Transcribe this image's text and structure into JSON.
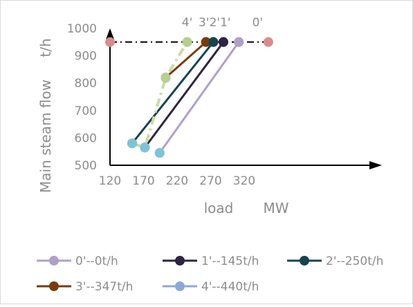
{
  "chart_data": {
    "type": "line",
    "xlabel": "load MW",
    "ylabel": "Main steam flow t/h",
    "xlim": [
      120,
      370
    ],
    "ylim": [
      500,
      1000
    ],
    "x_ticks": [
      "120",
      "170",
      "220",
      "270",
      "320"
    ],
    "y_ticks": [
      "500",
      "600",
      "700",
      "800",
      "900",
      "1000"
    ],
    "grid": false,
    "legend": "bottom",
    "reference_line": {
      "y": 950,
      "x_start": 120,
      "x_end": 356,
      "style": "dash-dot",
      "color": "#000000"
    },
    "series": [
      {
        "name": "0'--0t/h",
        "color": "#b09fc9",
        "points": [
          [
            194,
            545
          ],
          [
            312,
            950
          ]
        ]
      },
      {
        "name": "1'--145t/h",
        "color": "#2e2440",
        "points": [
          [
            172,
            565
          ],
          [
            289,
            950
          ]
        ]
      },
      {
        "name": "2'--250t/h",
        "color": "#15444f",
        "points": [
          [
            153,
            580
          ],
          [
            274,
            950
          ]
        ]
      },
      {
        "name": "3'--347t/h",
        "color": "#7a3a0e",
        "points": [
          [
            203,
            820
          ],
          [
            263,
            950
          ]
        ]
      },
      {
        "name": "4'--440t/h",
        "color": "#8aa9d8",
        "line_color": "#c8dca0",
        "points": [
          [
            153,
            580
          ],
          [
            172,
            565
          ],
          [
            203,
            820
          ],
          [
            235,
            950
          ]
        ]
      }
    ],
    "extra_points": [
      {
        "label": "0'",
        "x": 356,
        "y": 950,
        "color": "#d98c8c"
      },
      {
        "label": "",
        "x": 120,
        "y": 950,
        "color": "#d98c8c"
      }
    ],
    "point_labels": [
      "4'",
      "3'",
      "2'",
      "1'",
      "0'"
    ]
  }
}
